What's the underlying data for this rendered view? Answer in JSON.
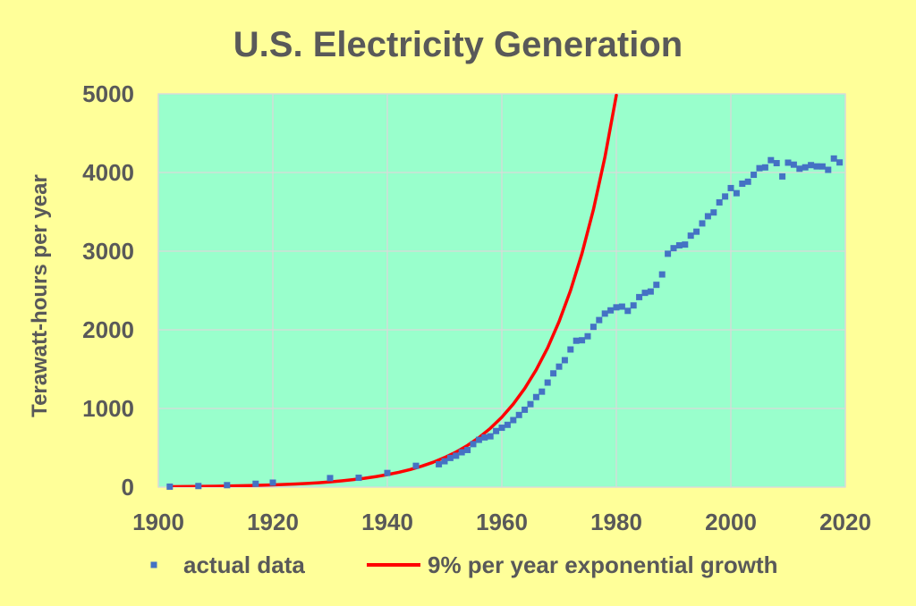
{
  "colors": {
    "background": "#FFFF99",
    "plot_area": "#99FFCC",
    "text": "#595959",
    "grid": "#D9D9D9"
  },
  "chart_data": {
    "type": "scatter",
    "title": "U.S. Electricity Generation",
    "ylabel": "Terawatt-hours per year",
    "xlim": [
      1900,
      2020
    ],
    "ylim": [
      0,
      5000
    ],
    "x_ticks": [
      1900,
      1920,
      1940,
      1960,
      1980,
      2000,
      2020
    ],
    "y_ticks": [
      0,
      1000,
      2000,
      3000,
      4000,
      5000
    ],
    "grid": true,
    "legend_position": "bottom",
    "series": [
      {
        "name": "actual data",
        "type": "scatter",
        "color": "#4472C4",
        "x": [
          1902,
          1907,
          1912,
          1917,
          1920,
          1930,
          1935,
          1940,
          1945,
          1949,
          1950,
          1951,
          1952,
          1953,
          1954,
          1955,
          1956,
          1957,
          1958,
          1959,
          1960,
          1961,
          1962,
          1963,
          1964,
          1965,
          1966,
          1967,
          1968,
          1969,
          1970,
          1971,
          1972,
          1973,
          1974,
          1975,
          1976,
          1977,
          1978,
          1979,
          1980,
          1981,
          1982,
          1983,
          1984,
          1985,
          1986,
          1987,
          1988,
          1989,
          1990,
          1991,
          1992,
          1993,
          1994,
          1995,
          1996,
          1997,
          1998,
          1999,
          2000,
          2001,
          2002,
          2003,
          2004,
          2005,
          2006,
          2007,
          2008,
          2009,
          2010,
          2011,
          2012,
          2013,
          2014,
          2015,
          2016,
          2017,
          2018,
          2019
        ],
        "y": [
          6,
          14,
          25,
          43,
          57,
          115,
          119,
          180,
          271,
          291,
          329,
          371,
          399,
          443,
          472,
          547,
          601,
          632,
          646,
          713,
          755,
          792,
          852,
          917,
          984,
          1055,
          1145,
          1214,
          1329,
          1446,
          1532,
          1614,
          1750,
          1861,
          1867,
          1918,
          2038,
          2124,
          2206,
          2247,
          2286,
          2295,
          2241,
          2310,
          2416,
          2470,
          2487,
          2572,
          2704,
          2967,
          3038,
          3074,
          3084,
          3197,
          3248,
          3353,
          3444,
          3492,
          3620,
          3695,
          3802,
          3737,
          3858,
          3883,
          3971,
          4055,
          4065,
          4157,
          4119,
          3950,
          4125,
          4100,
          4048,
          4066,
          4094,
          4078,
          4077,
          4034,
          4178,
          4128
        ]
      },
      {
        "name": "9% per year exponential growth",
        "type": "line",
        "color": "#FF0000",
        "x": [
          1902,
          1904,
          1906,
          1908,
          1910,
          1912,
          1914,
          1916,
          1918,
          1920,
          1922,
          1924,
          1926,
          1928,
          1930,
          1932,
          1934,
          1936,
          1938,
          1940,
          1942,
          1944,
          1946,
          1948,
          1950,
          1952,
          1954,
          1956,
          1958,
          1960,
          1962,
          1964,
          1966,
          1968,
          1970,
          1972,
          1974,
          1976,
          1978,
          1980
        ],
        "y": [
          6,
          7,
          8,
          10,
          12,
          14,
          17,
          20,
          24,
          28,
          34,
          40,
          47,
          56,
          67,
          80,
          95,
          112,
          134,
          159,
          188,
          224,
          266,
          316,
          376,
          446,
          530,
          630,
          748,
          889,
          1056,
          1255,
          1491,
          1771,
          2105,
          2500,
          2971,
          3529,
          4193,
          4982
        ]
      }
    ]
  }
}
